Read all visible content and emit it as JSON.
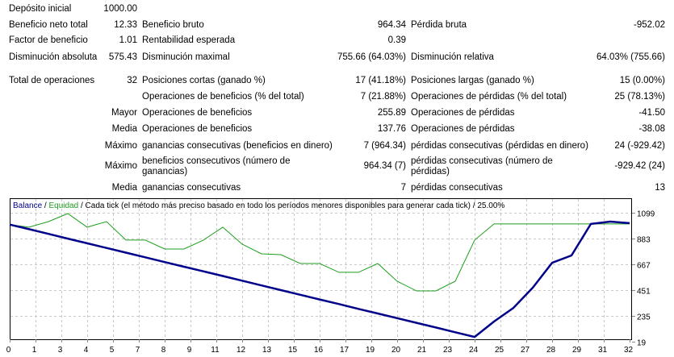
{
  "report": {
    "rows": [
      {
        "l1": "Depósito inicial",
        "v1": "1000.00",
        "l2": "",
        "v2": "",
        "l3": "",
        "v3": ""
      },
      {
        "l1": "Beneficio neto total",
        "v1": "12.33",
        "l2": "Beneficio bruto",
        "v2": "964.34",
        "l3": "Pérdida bruta",
        "v3": "-952.02"
      },
      {
        "l1": "Factor de beneficio",
        "v1": "1.01",
        "l2": "Rentabilidad esperada",
        "v2": "0.39",
        "l3": "",
        "v3": ""
      },
      {
        "l1": "Disminución absoluta",
        "v1": "575.43",
        "l2": "Disminución maximal",
        "v2": "755.66 (64.03%)",
        "l3": "Disminución relativa",
        "v3": "64.03% (755.66)"
      },
      {
        "l1": "Total de operaciones",
        "v1": "32",
        "l2": "Posiciones cortas (ganado %)",
        "v2": "17 (41.18%)",
        "l3": "Posiciones largas (ganado %)",
        "v3": "15 (0.00%)"
      },
      {
        "l1": "",
        "v1": "",
        "l2": "Operaciones de beneficios (% del total)",
        "v2": "7 (21.88%)",
        "l3": "Operaciones de pérdidas (% del total)",
        "v3": "25 (78.13%)"
      },
      {
        "l1": "",
        "v1": "Mayor",
        "l2": "Operaciones de beneficios",
        "v2": "255.89",
        "l3": "Operaciones de pérdidas",
        "v3": "-41.50"
      },
      {
        "l1": "",
        "v1": "Media",
        "l2": "Operaciones de beneficios",
        "v2": "137.76",
        "l3": "Operaciones de pérdidas",
        "v3": "-38.08"
      },
      {
        "l1": "",
        "v1": "Máximo",
        "l2": "ganancias consecutivas (beneficios en dinero)",
        "v2": "7 (964.34)",
        "l3": "pérdidas consecutivas (pérdidas en dinero)",
        "v3": "24 (-929.42)"
      },
      {
        "l1": "",
        "v1": "Máximo",
        "l2": "beneficios consecutivos (número de ganancias)",
        "v2": "964.34 (7)",
        "l3": "pérdidas consecutivas (número de pérdidas)",
        "v3": "-929.42 (24)"
      },
      {
        "l1": "",
        "v1": "Media",
        "l2": "ganancias consecutivas",
        "v2": "7",
        "l3": "pérdidas consecutivas",
        "v3": "13"
      }
    ]
  },
  "chart_data": {
    "type": "line",
    "legend": {
      "balance": "Balance",
      "sep1": " / ",
      "equity": "Equidad",
      "sep2": " / ",
      "description": "Cada tick (el método más preciso basado en todo los períodos menores disponibles para generar cada tick)  / 25.00%"
    },
    "colors": {
      "balance": "#00008b",
      "equity": "#1e9e1e",
      "grid": "#c8c8c8"
    },
    "x_ticks": [
      "0",
      "1",
      "3",
      "4",
      "5",
      "7",
      "8",
      "9",
      "11",
      "12",
      "13",
      "15",
      "16",
      "17",
      "19",
      "20",
      "21",
      "23",
      "24",
      "25",
      "27",
      "28",
      "29",
      "31",
      "32"
    ],
    "y_ticks": [
      "1099",
      "883",
      "667",
      "451",
      "235",
      "19"
    ],
    "ylim": [
      19,
      1099
    ],
    "xlim": [
      0,
      32
    ],
    "series": [
      {
        "name": "Balance",
        "x": [
          0,
          1,
          2,
          3,
          4,
          5,
          6,
          7,
          8,
          9,
          10,
          11,
          12,
          13,
          14,
          15,
          16,
          17,
          18,
          19,
          20,
          21,
          22,
          23,
          24,
          25,
          26,
          27,
          28,
          29,
          30,
          31,
          32
        ],
        "values": [
          1000,
          961,
          922,
          882,
          843,
          804,
          765,
          726,
          686,
          647,
          608,
          569,
          530,
          490,
          451,
          412,
          373,
          334,
          294,
          255,
          216,
          177,
          138,
          98,
          59,
          188,
          302,
          471,
          680,
          741,
          1005,
          1025,
          1012
        ]
      },
      {
        "name": "Equidad",
        "x": [
          0,
          1,
          2,
          3,
          4,
          5,
          6,
          7,
          8,
          9,
          10,
          11,
          12,
          13,
          14,
          15,
          16,
          17,
          18,
          19,
          20,
          21,
          22,
          23,
          24,
          25,
          26,
          27,
          28,
          29,
          30,
          31,
          32
        ],
        "values": [
          1000,
          978,
          1025,
          1092,
          978,
          1025,
          870,
          870,
          795,
          795,
          870,
          978,
          836,
          755,
          748,
          674,
          674,
          600,
          600,
          674,
          525,
          444,
          444,
          525,
          870,
          1005,
          1005,
          1005,
          1005,
          1005,
          1005,
          1005,
          1005
        ]
      }
    ]
  }
}
